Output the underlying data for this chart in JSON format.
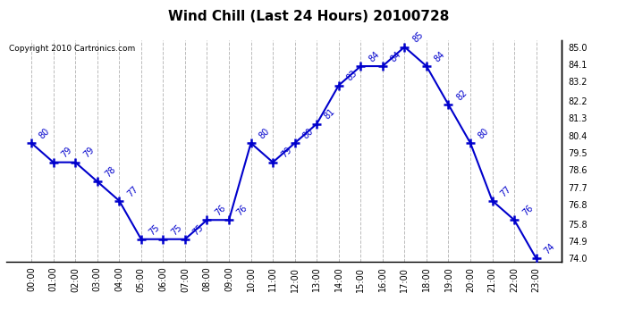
{
  "title": "Wind Chill (Last 24 Hours) 20100728",
  "copyright": "Copyright 2010 Cartronics.com",
  "hours": [
    "00:00",
    "01:00",
    "02:00",
    "03:00",
    "04:00",
    "05:00",
    "06:00",
    "07:00",
    "08:00",
    "09:00",
    "10:00",
    "11:00",
    "12:00",
    "13:00",
    "14:00",
    "15:00",
    "16:00",
    "17:00",
    "18:00",
    "19:00",
    "20:00",
    "21:00",
    "22:00",
    "23:00"
  ],
  "values": [
    80,
    79,
    79,
    78,
    77,
    75,
    75,
    75,
    76,
    76,
    80,
    79,
    80,
    81,
    83,
    84,
    84,
    85,
    84,
    82,
    80,
    77,
    76,
    74
  ],
  "line_color": "#0000cc",
  "marker": "+",
  "marker_size": 7,
  "marker_color": "#0000cc",
  "background_color": "#ffffff",
  "plot_bg_color": "#ffffff",
  "grid_color": "#bbbbbb",
  "grid_style": "--",
  "y_min": 74.0,
  "y_max": 85.0,
  "y_ticks_right": [
    85.0,
    84.1,
    83.2,
    82.2,
    81.3,
    80.4,
    79.5,
    78.6,
    77.7,
    76.8,
    75.8,
    74.9,
    74.0
  ],
  "title_fontsize": 11,
  "label_fontsize": 7,
  "tick_fontsize": 7,
  "copyright_fontsize": 6.5
}
